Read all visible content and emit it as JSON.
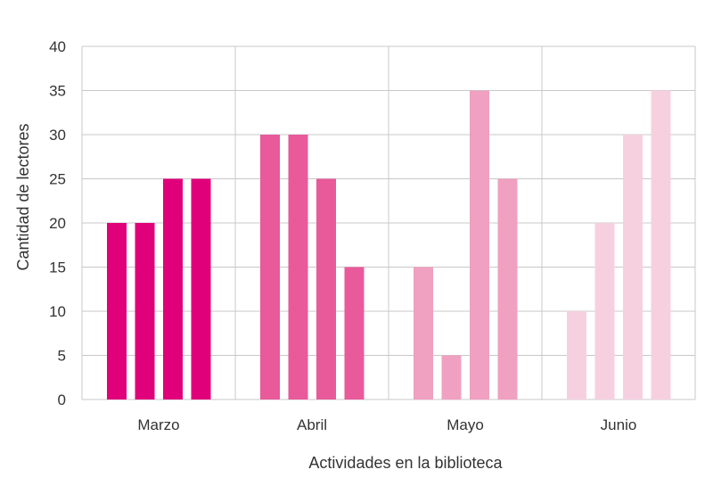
{
  "chart_data": {
    "type": "bar",
    "title": "",
    "xlabel": "Actividades en la biblioteca",
    "ylabel": "Cantidad de lectores",
    "categories": [
      "Marzo",
      "Abril",
      "Mayo",
      "Junio"
    ],
    "ylim": [
      0,
      40
    ],
    "yticks": [
      "0",
      "5",
      "10",
      "15",
      "20",
      "25",
      "30",
      "35",
      "40"
    ],
    "grid": true,
    "legend": "none",
    "group_colors": [
      "#e0007a",
      "#e85a9a",
      "#f0a0c0",
      "#f7d0e0"
    ],
    "groups": [
      {
        "category": "Marzo",
        "values": [
          20,
          20,
          25,
          25
        ]
      },
      {
        "category": "Abril",
        "values": [
          30,
          30,
          25,
          15
        ]
      },
      {
        "category": "Mayo",
        "values": [
          15,
          5,
          35,
          25
        ]
      },
      {
        "category": "Junio",
        "values": [
          10,
          20,
          30,
          35
        ]
      }
    ]
  },
  "colors": {
    "grid": "#c8c8c8",
    "axis_text": "#333333"
  }
}
